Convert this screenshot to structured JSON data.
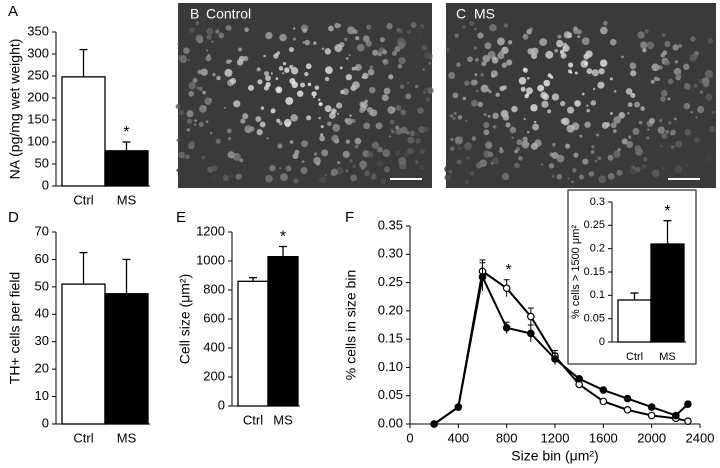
{
  "chart_data": [
    {
      "type": "bar",
      "panel": "A",
      "ylabel": "NA (pg/mg wet weight)",
      "categories": [
        "Ctrl",
        "MS"
      ],
      "values": [
        248,
        80
      ],
      "errors": [
        62,
        20
      ],
      "colors": [
        "#ffffff",
        "#000000"
      ],
      "ylim": [
        0,
        350
      ],
      "yticks": [
        0,
        50,
        100,
        150,
        200,
        250,
        300,
        350
      ],
      "annotation": "*"
    },
    {
      "type": "bar",
      "panel": "D",
      "ylabel": "TH+ cells per field",
      "categories": [
        "Ctrl",
        "MS"
      ],
      "values": [
        51,
        47.5
      ],
      "errors": [
        11.5,
        12.5
      ],
      "colors": [
        "#ffffff",
        "#000000"
      ],
      "ylim": [
        0,
        70
      ],
      "yticks": [
        0,
        10,
        20,
        30,
        40,
        50,
        60,
        70
      ]
    },
    {
      "type": "bar",
      "panel": "E",
      "ylabel": "Cell size (μm²)",
      "categories": [
        "Ctrl",
        "MS"
      ],
      "values": [
        860,
        1030
      ],
      "errors": [
        25,
        70
      ],
      "colors": [
        "#ffffff",
        "#000000"
      ],
      "ylim": [
        0,
        1200
      ],
      "yticks": [
        0,
        200,
        400,
        600,
        800,
        1000,
        1200
      ],
      "annotation": "*"
    },
    {
      "type": "line",
      "panel": "F",
      "ylabel": "% cells in size bin",
      "xlabel": "Size bin (μm²)",
      "x": [
        200,
        400,
        600,
        800,
        1000,
        1200,
        1400,
        1600,
        1800,
        2000,
        2200,
        2300
      ],
      "series": [
        {
          "color": "#ffffff",
          "values": [
            0,
            0.03,
            0.27,
            0.24,
            0.19,
            0.12,
            0.07,
            0.04,
            0.025,
            0.015,
            0.01,
            0.005
          ],
          "errors": [
            null,
            null,
            0.02,
            0.015,
            0.015,
            0.01,
            null,
            null,
            null,
            null,
            null,
            null
          ]
        },
        {
          "color": "#000000",
          "values": [
            0,
            0.03,
            0.26,
            0.17,
            0.16,
            0.115,
            0.08,
            0.06,
            0.045,
            0.03,
            0.015,
            0.035
          ],
          "errors": [
            null,
            null,
            0.025,
            0.01,
            0.015,
            0.01,
            null,
            null,
            null,
            null,
            null,
            null
          ]
        }
      ],
      "xlim": [
        0,
        2400
      ],
      "xticks": [
        0,
        400,
        800,
        1200,
        1600,
        2000,
        2400
      ],
      "ylim": [
        0,
        0.35
      ],
      "yticks": [
        {
          "value": 0,
          "label": "0.00"
        },
        {
          "value": 0.05,
          "label": "0.05"
        },
        {
          "value": 0.1,
          "label": "0.10"
        },
        {
          "value": 0.15,
          "label": "0.15"
        },
        {
          "value": 0.2,
          "label": "0.20"
        },
        {
          "value": 0.25,
          "label": "0.25"
        },
        {
          "value": 0.3,
          "label": "0.30"
        },
        {
          "value": 0.35,
          "label": "0.35"
        }
      ],
      "annotation": "*"
    },
    {
      "type": "bar",
      "ylabel": "% cells > 1500 μm²",
      "categories": [
        "Ctrl",
        "MS"
      ],
      "values": [
        0.09,
        0.21
      ],
      "errors": [
        0.015,
        0.05
      ],
      "colors": [
        "#ffffff",
        "#000000"
      ],
      "ylim": [
        0,
        0.3
      ],
      "yticks": [
        0,
        0.05,
        0.1,
        0.15,
        0.2,
        0.25,
        0.3
      ],
      "annotation": "*"
    }
  ],
  "images": [
    {
      "label": "B",
      "title": "Control"
    },
    {
      "label": "C",
      "title": "MS"
    }
  ]
}
